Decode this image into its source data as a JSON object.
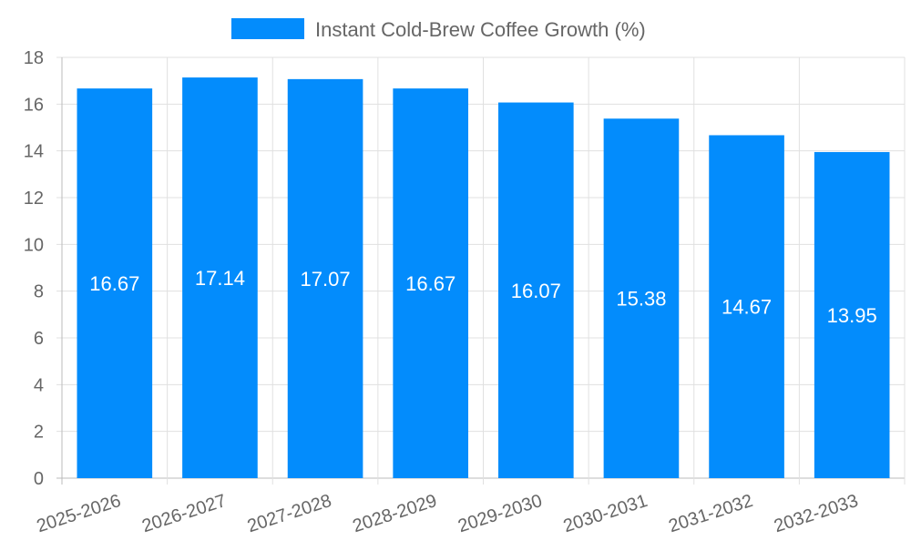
{
  "chart_data": {
    "type": "bar",
    "title": "",
    "legend": [
      {
        "label": "Instant Cold-Brew Coffee Growth (%)",
        "color": "#038cfc"
      }
    ],
    "legend_position": "top",
    "categories": [
      "2025-2026",
      "2026-2027",
      "2027-2028",
      "2028-2029",
      "2029-2030",
      "2030-2031",
      "2031-2032",
      "2032-2033"
    ],
    "series": [
      {
        "name": "Instant Cold-Brew Coffee Growth (%)",
        "values": [
          16.67,
          17.14,
          17.07,
          16.67,
          16.07,
          15.38,
          14.67,
          13.95
        ]
      }
    ],
    "data_labels": [
      "16.67",
      "17.14",
      "17.07",
      "16.67",
      "16.07",
      "15.38",
      "14.67",
      "13.95"
    ],
    "ylim": [
      0,
      18
    ],
    "yticks": [
      "0",
      "2",
      "4",
      "6",
      "8",
      "10",
      "12",
      "14",
      "16",
      "18"
    ],
    "xlabel": "",
    "ylabel": "",
    "grid": true,
    "colors": {
      "bar": "#038cfc",
      "grid": "#e0e0e0",
      "text": "#666666",
      "label": "#ffffff"
    }
  }
}
